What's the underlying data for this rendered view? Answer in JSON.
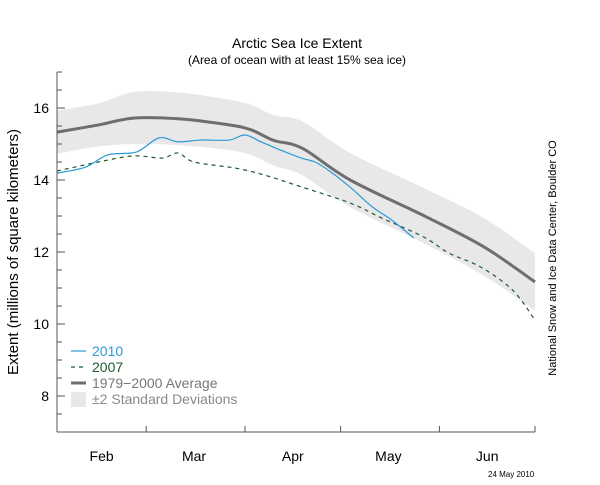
{
  "chart_data": {
    "type": "line",
    "title": "Arctic Sea Ice Extent",
    "subtitle": "(Area of ocean with at least 15% sea ice)",
    "ylabel": "Extent (millions of square kilometers)",
    "xlabel": "",
    "credit": "National Snow and Ice Data Center, Boulder CO",
    "date_stamp": "24 May 2010",
    "year": 2010,
    "xlim": [
      "Feb 1",
      "Jul 1"
    ],
    "ylim": [
      7,
      17
    ],
    "yticks": [
      8,
      10,
      12,
      14,
      16
    ],
    "yticks_labels": [
      "8",
      "10",
      "12",
      "14",
      "16"
    ],
    "xtick_boundaries": [
      "Mar 1",
      "Apr 1",
      "May 1",
      "Jun 1",
      "Jul 1"
    ],
    "month_labels": [
      {
        "label": "Feb",
        "center": "Feb 15"
      },
      {
        "label": "Mar",
        "center": "Mar 16"
      },
      {
        "label": "Apr",
        "center": "Apr 16"
      },
      {
        "label": "May",
        "center": "May 16"
      },
      {
        "label": "Jun",
        "center": "Jun 16"
      }
    ],
    "grid": false,
    "legend_position": "bottom-left",
    "series": [
      {
        "name": "±2 Standard Deviations",
        "kind": "band",
        "color": "#e8e8e8",
        "x": [
          "Feb 1",
          "Feb 14",
          "Feb 25",
          "Mar 11",
          "Mar 27",
          "Apr 3",
          "Apr 10",
          "Apr 19",
          "May 4",
          "May 28",
          "Jun 15",
          "Jul 1"
        ],
        "lower": [
          14.73,
          14.93,
          15.0,
          14.97,
          14.83,
          14.69,
          14.4,
          14.13,
          13.25,
          12.2,
          11.34,
          10.37
        ],
        "upper": [
          15.93,
          16.13,
          16.44,
          16.43,
          16.23,
          16.09,
          15.8,
          15.63,
          14.75,
          13.74,
          12.94,
          11.97
        ]
      },
      {
        "name": "1979−2000 Average",
        "kind": "line",
        "color": "#6e6e6e",
        "x": [
          "Feb 1",
          "Feb 14",
          "Feb 25",
          "Mar 11",
          "Mar 27",
          "Apr 3",
          "Apr 10",
          "Apr 19",
          "May 4",
          "May 28",
          "Jun 15",
          "Jul 1"
        ],
        "y": [
          15.33,
          15.53,
          15.72,
          15.7,
          15.53,
          15.39,
          15.1,
          14.88,
          14.0,
          12.97,
          12.14,
          11.17
        ]
      },
      {
        "name": "2007",
        "kind": "dashed",
        "color": "#1f5a2e",
        "x": [
          "Feb 1",
          "Feb 14",
          "Feb 25",
          "Mar 6",
          "Mar 11",
          "Mar 16",
          "Mar 29",
          "Apr 7",
          "Apr 19",
          "May 4",
          "May 14",
          "May 27",
          "Jun 4",
          "Jun 14",
          "Jun 24",
          "Jul 1"
        ],
        "y": [
          14.25,
          14.5,
          14.67,
          14.61,
          14.75,
          14.5,
          14.33,
          14.14,
          13.8,
          13.36,
          12.94,
          12.42,
          11.97,
          11.58,
          10.94,
          10.11
        ]
      },
      {
        "name": "2010",
        "kind": "line",
        "color": "#2c9ad6",
        "x": [
          "Feb 1",
          "Feb 10",
          "Feb 17",
          "Feb 26",
          "Mar 5",
          "Mar 11",
          "Mar 18",
          "Mar 27",
          "Apr 1",
          "Apr 6",
          "Apr 13",
          "Apr 19",
          "Apr 23",
          "Apr 28",
          "May 4",
          "May 11",
          "May 17",
          "May 24"
        ],
        "y": [
          14.19,
          14.36,
          14.7,
          14.78,
          15.17,
          15.06,
          15.11,
          15.11,
          15.25,
          15.06,
          14.8,
          14.6,
          14.5,
          14.22,
          13.8,
          13.25,
          12.89,
          12.39
        ]
      }
    ]
  },
  "legend": {
    "items": [
      {
        "label": "2010",
        "color": "#2c9ad6"
      },
      {
        "label": "2007",
        "color": "#1f5a2e"
      },
      {
        "label": "1979−2000 Average",
        "color": "#777777"
      },
      {
        "label": "±2 Standard Deviations",
        "color": "#8a8a8a"
      }
    ]
  }
}
